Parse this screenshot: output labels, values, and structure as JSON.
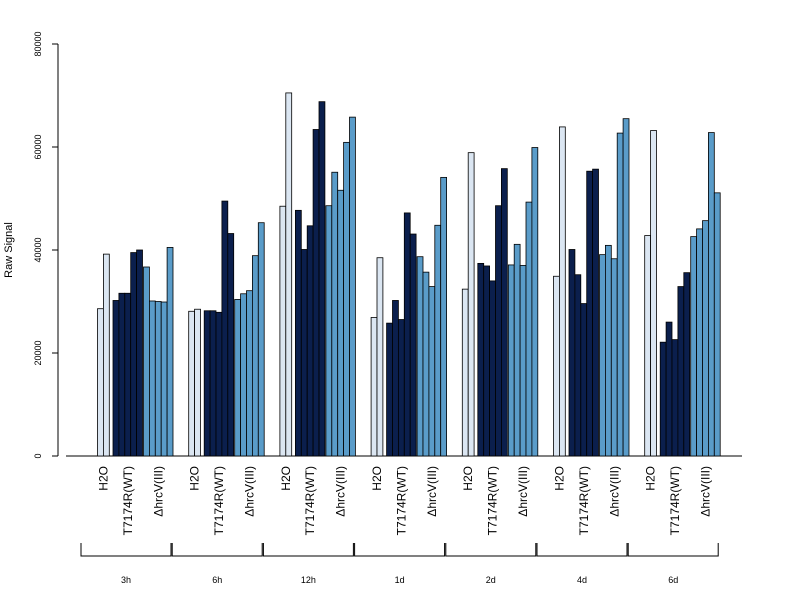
{
  "chart_data": {
    "type": "bar",
    "title": "",
    "xlabel": "",
    "ylabel": "Raw Signal",
    "ylim": [
      0,
      80000
    ],
    "yticks": [
      0,
      20000,
      40000,
      60000,
      80000
    ],
    "grid": false,
    "groups": [
      "3h",
      "6h",
      "12h",
      "1d",
      "2d",
      "4d",
      "6d"
    ],
    "categories": [
      "H2O",
      "T7174R(WT)",
      "ΔhrcV(III)"
    ],
    "colors": {
      "H2O": "#dbe6f2",
      "T7174R(WT)": "#0b1f4d",
      "ΔhrcV(III)": "#5a9cc9"
    },
    "values": {
      "3h": {
        "H2O": [
          28600,
          39200
        ],
        "T7174R(WT)": [
          30200,
          31600,
          31600,
          39500,
          40000
        ],
        "ΔhrcV(III)": [
          36700,
          30100,
          30000,
          29900,
          40500
        ]
      },
      "6h": {
        "H2O": [
          28100,
          28500
        ],
        "T7174R(WT)": [
          28200,
          28200,
          27900,
          49500,
          43200
        ],
        "ΔhrcV(III)": [
          30400,
          31500,
          32100,
          38900,
          45300
        ]
      },
      "12h": {
        "H2O": [
          48500,
          70500
        ],
        "T7174R(WT)": [
          47700,
          40100,
          44700,
          63400,
          68800
        ],
        "ΔhrcV(III)": [
          48600,
          55100,
          51600,
          60900,
          65800
        ]
      },
      "1d": {
        "H2O": [
          26900,
          38500
        ],
        "T7174R(WT)": [
          25800,
          30200,
          26500,
          47200,
          43100
        ],
        "ΔhrcV(III)": [
          38700,
          35700,
          32900,
          44800,
          54100
        ]
      },
      "2d": {
        "H2O": [
          32400,
          58900
        ],
        "T7174R(WT)": [
          37400,
          36900,
          34000,
          48600,
          55800
        ],
        "ΔhrcV(III)": [
          37100,
          41100,
          37000,
          49300,
          59900
        ]
      },
      "4d": {
        "H2O": [
          34900,
          63900
        ],
        "T7174R(WT)": [
          40100,
          35200,
          29600,
          55300,
          55700
        ],
        "ΔhrcV(III)": [
          39100,
          40900,
          38300,
          62700,
          65500
        ]
      },
      "6d": {
        "H2O": [
          42800,
          63200
        ],
        "T7174R(WT)": [
          22100,
          26000,
          22600,
          32900,
          35600
        ],
        "ΔhrcV(III)": [
          42600,
          44100,
          45700,
          62800,
          51100
        ]
      }
    }
  }
}
